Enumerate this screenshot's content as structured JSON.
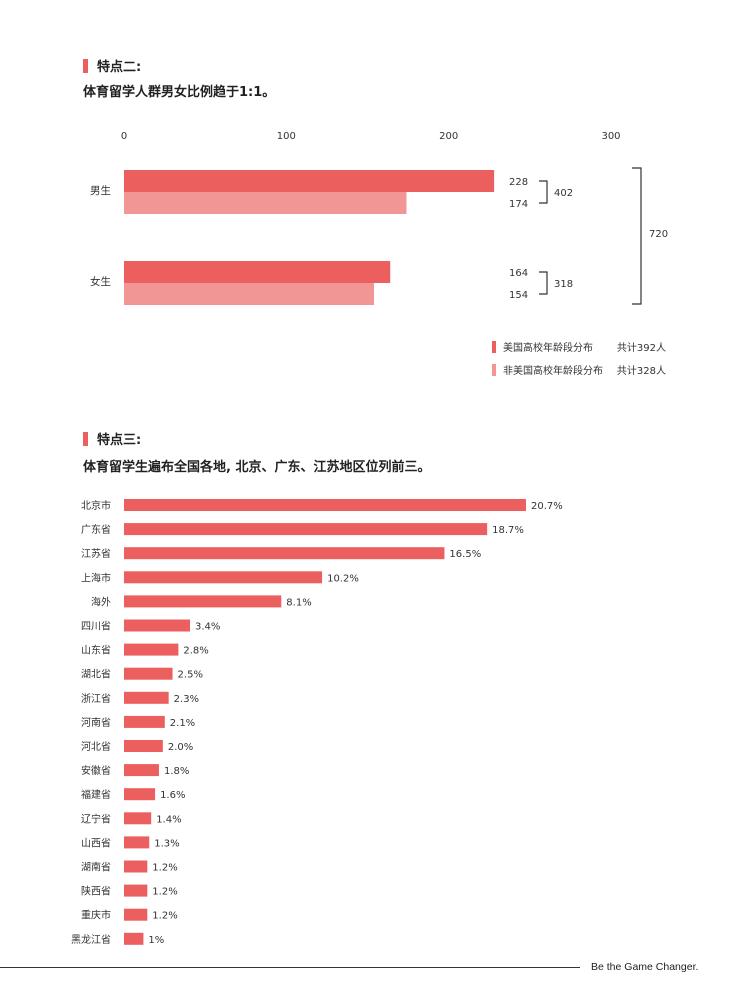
{
  "colors": {
    "accent": "#ec5f5f",
    "accent_light": "#f19595",
    "bracket": "#333333"
  },
  "section2": {
    "title": "特点二:",
    "subtitle": "体育留学人群男女比例趋于1:1。"
  },
  "section3": {
    "title": "特点三:",
    "subtitle": "体育留学生遍布全国各地, 北京、广东、江苏地区位列前三。"
  },
  "chart_data": [
    {
      "type": "bar",
      "orientation": "horizontal",
      "categories": [
        "男生",
        "女生"
      ],
      "series": [
        {
          "name": "美国高校年龄段分布 共计392人",
          "values": [
            228,
            164
          ]
        },
        {
          "name": "非美国高校年龄段分布 共计328人",
          "values": [
            174,
            154
          ]
        }
      ],
      "xlim": [
        0,
        300
      ],
      "x_ticks": [
        "0",
        "100",
        "200",
        "300"
      ],
      "subtotals": [
        "402",
        "318"
      ],
      "total": "720",
      "legend": [
        {
          "label": "美国高校年龄段分布",
          "total": "共计392人"
        },
        {
          "label": "非美国高校年龄段分布",
          "total": "共计328人"
        }
      ],
      "legend_position": "bottom-right",
      "grid": false
    },
    {
      "type": "bar",
      "orientation": "horizontal",
      "categories": [
        "北京市",
        "广东省",
        "江苏省",
        "上海市",
        "海外",
        "四川省",
        "山东省",
        "湖北省",
        "浙江省",
        "河南省",
        "河北省",
        "安徽省",
        "福建省",
        "辽宁省",
        "山西省",
        "湖南省",
        "陕西省",
        "重庆市",
        "黑龙江省"
      ],
      "values": [
        20.7,
        18.7,
        16.5,
        10.2,
        8.1,
        3.4,
        2.8,
        2.5,
        2.3,
        2.1,
        2.0,
        1.8,
        1.6,
        1.4,
        1.3,
        1.2,
        1.2,
        1.2,
        1
      ],
      "value_labels": [
        "20.7%",
        "18.7%",
        "16.5%",
        "10.2%",
        "8.1%",
        "3.4%",
        "2.8%",
        "2.5%",
        "2.3%",
        "2.1%",
        "2.0%",
        "1.8%",
        "1.6%",
        "1.4%",
        "1.3%",
        "1.2%",
        "1.2%",
        "1.2%",
        "1%"
      ],
      "unit": "%",
      "grid": false
    }
  ],
  "footer": {
    "tagline": "Be the Game Changer."
  }
}
